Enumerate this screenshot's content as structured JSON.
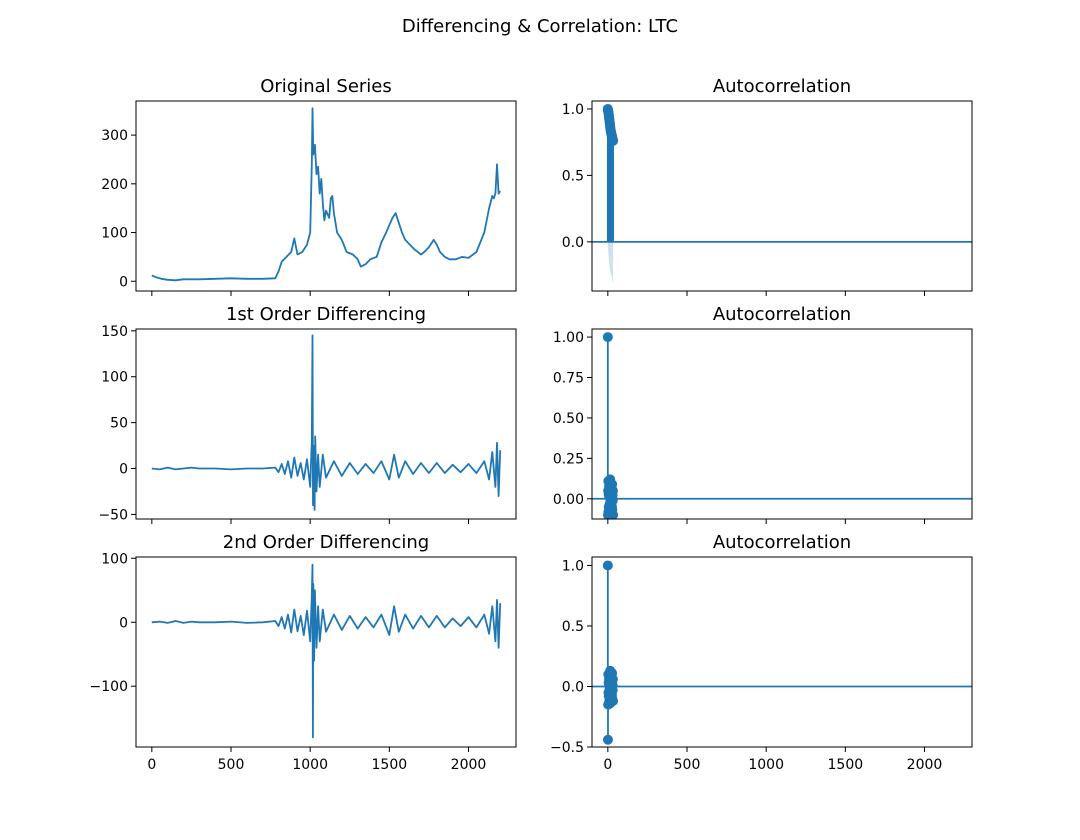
{
  "figure": {
    "title": "Differencing & Correlation: LTC"
  },
  "colors": {
    "series": "#1f77b4",
    "band": "#1f77b4",
    "axis": "#000000"
  },
  "chart_data": [
    {
      "type": "line",
      "title": "Original Series",
      "xlim": [
        -100,
        2300
      ],
      "ylim": [
        -20,
        370
      ],
      "yticks": [
        0,
        100,
        200,
        300
      ],
      "ytick_labels": [
        "0",
        "100",
        "200",
        "300"
      ],
      "xticks": [
        0,
        500,
        1000,
        1500,
        2000
      ],
      "xtick_labels_visible": false,
      "points": [
        [
          0,
          12
        ],
        [
          30,
          8
        ],
        [
          60,
          5
        ],
        [
          100,
          3
        ],
        [
          150,
          2
        ],
        [
          200,
          4
        ],
        [
          300,
          4
        ],
        [
          400,
          5
        ],
        [
          500,
          6
        ],
        [
          600,
          5
        ],
        [
          700,
          5
        ],
        [
          780,
          6
        ],
        [
          800,
          20
        ],
        [
          820,
          40
        ],
        [
          850,
          50
        ],
        [
          880,
          60
        ],
        [
          900,
          88
        ],
        [
          920,
          55
        ],
        [
          950,
          60
        ],
        [
          980,
          75
        ],
        [
          1000,
          100
        ],
        [
          1010,
          240
        ],
        [
          1015,
          355
        ],
        [
          1020,
          260
        ],
        [
          1030,
          280
        ],
        [
          1040,
          220
        ],
        [
          1050,
          235
        ],
        [
          1060,
          180
        ],
        [
          1070,
          210
        ],
        [
          1080,
          160
        ],
        [
          1090,
          125
        ],
        [
          1100,
          145
        ],
        [
          1120,
          130
        ],
        [
          1130,
          170
        ],
        [
          1140,
          175
        ],
        [
          1150,
          140
        ],
        [
          1170,
          100
        ],
        [
          1200,
          85
        ],
        [
          1230,
          60
        ],
        [
          1270,
          55
        ],
        [
          1300,
          45
        ],
        [
          1320,
          30
        ],
        [
          1350,
          35
        ],
        [
          1380,
          45
        ],
        [
          1420,
          50
        ],
        [
          1450,
          80
        ],
        [
          1480,
          100
        ],
        [
          1500,
          115
        ],
        [
          1520,
          130
        ],
        [
          1540,
          140
        ],
        [
          1560,
          120
        ],
        [
          1580,
          100
        ],
        [
          1600,
          85
        ],
        [
          1630,
          75
        ],
        [
          1660,
          65
        ],
        [
          1700,
          55
        ],
        [
          1720,
          60
        ],
        [
          1750,
          70
        ],
        [
          1780,
          85
        ],
        [
          1800,
          75
        ],
        [
          1820,
          60
        ],
        [
          1850,
          50
        ],
        [
          1880,
          45
        ],
        [
          1920,
          45
        ],
        [
          1960,
          50
        ],
        [
          2000,
          48
        ],
        [
          2050,
          60
        ],
        [
          2100,
          100
        ],
        [
          2130,
          150
        ],
        [
          2150,
          175
        ],
        [
          2160,
          170
        ],
        [
          2170,
          180
        ],
        [
          2180,
          240
        ],
        [
          2190,
          180
        ],
        [
          2200,
          185
        ]
      ]
    },
    {
      "type": "stem",
      "title": "Autocorrelation",
      "xlim": [
        -100,
        2300
      ],
      "ylim": [
        -0.37,
        1.06
      ],
      "yticks": [
        0.0,
        0.5,
        1.0
      ],
      "ytick_labels": [
        "0.0",
        "0.5",
        "1.0"
      ],
      "xticks": [
        0,
        500,
        1000,
        1500,
        2000
      ],
      "xtick_labels_visible": false,
      "lags": [
        0,
        1,
        2,
        3,
        4,
        5,
        6,
        7,
        8,
        9,
        10,
        11,
        12,
        13,
        14,
        15,
        16,
        17,
        18,
        19,
        20,
        21,
        22,
        23,
        24,
        25,
        26,
        27,
        28,
        29,
        30,
        31,
        32,
        33
      ],
      "values": [
        1.0,
        0.99,
        0.985,
        0.98,
        0.975,
        0.965,
        0.955,
        0.945,
        0.935,
        0.925,
        0.915,
        0.905,
        0.895,
        0.885,
        0.875,
        0.865,
        0.855,
        0.845,
        0.835,
        0.83,
        0.825,
        0.82,
        0.815,
        0.81,
        0.805,
        0.8,
        0.795,
        0.79,
        0.785,
        0.78,
        0.775,
        0.77,
        0.765,
        0.76
      ],
      "confint_lower": [
        0,
        -0.04,
        -0.07,
        -0.09,
        -0.11,
        -0.12,
        -0.14,
        -0.15,
        -0.16,
        -0.17,
        -0.18,
        -0.19,
        -0.2,
        -0.21,
        -0.215,
        -0.22,
        -0.225,
        -0.23,
        -0.235,
        -0.24,
        -0.245,
        -0.25,
        -0.255,
        -0.26,
        -0.265,
        -0.27,
        -0.275,
        -0.28,
        -0.285,
        -0.29,
        -0.295,
        -0.3,
        -0.305,
        -0.31
      ]
    },
    {
      "type": "line",
      "title": "1st Order Differencing",
      "xlim": [
        -100,
        2300
      ],
      "ylim": [
        -55,
        152
      ],
      "yticks": [
        -50,
        0,
        50,
        100,
        150
      ],
      "ytick_labels": [
        "−50",
        "0",
        "50",
        "100",
        "150"
      ],
      "xticks": [
        0,
        500,
        1000,
        1500,
        2000
      ],
      "xtick_labels_visible": false,
      "points": [
        [
          0,
          0
        ],
        [
          50,
          -1
        ],
        [
          100,
          1
        ],
        [
          150,
          -1
        ],
        [
          200,
          0
        ],
        [
          250,
          1
        ],
        [
          300,
          0
        ],
        [
          400,
          0
        ],
        [
          500,
          -1
        ],
        [
          600,
          0
        ],
        [
          700,
          0
        ],
        [
          780,
          1
        ],
        [
          800,
          -4
        ],
        [
          820,
          5
        ],
        [
          840,
          -6
        ],
        [
          860,
          8
        ],
        [
          880,
          -10
        ],
        [
          900,
          12
        ],
        [
          920,
          -8
        ],
        [
          940,
          6
        ],
        [
          960,
          -12
        ],
        [
          980,
          10
        ],
        [
          1000,
          -20
        ],
        [
          1010,
          30
        ],
        [
          1015,
          145
        ],
        [
          1018,
          -40
        ],
        [
          1022,
          25
        ],
        [
          1028,
          -45
        ],
        [
          1032,
          35
        ],
        [
          1040,
          -25
        ],
        [
          1050,
          15
        ],
        [
          1060,
          -20
        ],
        [
          1080,
          15
        ],
        [
          1100,
          -10
        ],
        [
          1150,
          8
        ],
        [
          1200,
          -8
        ],
        [
          1250,
          6
        ],
        [
          1300,
          -6
        ],
        [
          1350,
          5
        ],
        [
          1400,
          -5
        ],
        [
          1450,
          8
        ],
        [
          1500,
          -12
        ],
        [
          1530,
          15
        ],
        [
          1560,
          -10
        ],
        [
          1600,
          8
        ],
        [
          1650,
          -6
        ],
        [
          1700,
          6
        ],
        [
          1750,
          -5
        ],
        [
          1800,
          6
        ],
        [
          1850,
          -5
        ],
        [
          1900,
          4
        ],
        [
          1950,
          -4
        ],
        [
          2000,
          5
        ],
        [
          2050,
          -5
        ],
        [
          2100,
          8
        ],
        [
          2130,
          -12
        ],
        [
          2150,
          18
        ],
        [
          2170,
          -20
        ],
        [
          2180,
          28
        ],
        [
          2190,
          -30
        ],
        [
          2200,
          20
        ]
      ]
    },
    {
      "type": "stem",
      "title": "Autocorrelation",
      "xlim": [
        -100,
        2300
      ],
      "ylim": [
        -0.125,
        1.05
      ],
      "yticks": [
        0.0,
        0.25,
        0.5,
        0.75,
        1.0
      ],
      "ytick_labels": [
        "0.00",
        "0.25",
        "0.50",
        "0.75",
        "1.00"
      ],
      "xticks": [
        0,
        500,
        1000,
        1500,
        2000
      ],
      "xtick_labels_visible": false,
      "lags": [
        0,
        1,
        2,
        3,
        4,
        5,
        6,
        7,
        8,
        9,
        10,
        11,
        12,
        13,
        14,
        15,
        16,
        17,
        18,
        19,
        20,
        21,
        22,
        23,
        24,
        25,
        26,
        27,
        28,
        29,
        30,
        31,
        32,
        33
      ],
      "values": [
        1.0,
        -0.1,
        0.05,
        0.11,
        -0.08,
        0.03,
        -0.05,
        0.02,
        0.08,
        -0.09,
        0.04,
        0.01,
        -0.03,
        0.06,
        -0.1,
        0.12,
        -0.02,
        0.03,
        -0.06,
        0.05,
        0.02,
        -0.04,
        0.07,
        -0.03,
        0.01,
        0.04,
        -0.05,
        0.09,
        -0.07,
        0.03,
        0.02,
        -0.01,
        0.05,
        -0.1
      ],
      "confint_lower": []
    },
    {
      "type": "line",
      "title": "2nd Order Differencing",
      "xlim": [
        -100,
        2300
      ],
      "ylim": [
        -195,
        102
      ],
      "yticks": [
        -100,
        0,
        100
      ],
      "ytick_labels": [
        "−100",
        "0",
        "100"
      ],
      "xticks": [
        0,
        500,
        1000,
        1500,
        2000
      ],
      "xtick_labels": [
        "0",
        "500",
        "1000",
        "1500",
        "2000"
      ],
      "xtick_labels_visible": true,
      "points": [
        [
          0,
          0
        ],
        [
          50,
          1
        ],
        [
          100,
          -1
        ],
        [
          150,
          2
        ],
        [
          200,
          -1
        ],
        [
          250,
          1
        ],
        [
          300,
          0
        ],
        [
          400,
          0
        ],
        [
          500,
          1
        ],
        [
          600,
          -1
        ],
        [
          700,
          0
        ],
        [
          780,
          2
        ],
        [
          800,
          -6
        ],
        [
          820,
          8
        ],
        [
          840,
          -10
        ],
        [
          860,
          12
        ],
        [
          880,
          -16
        ],
        [
          900,
          20
        ],
        [
          920,
          -14
        ],
        [
          940,
          10
        ],
        [
          960,
          -20
        ],
        [
          980,
          18
        ],
        [
          1000,
          -30
        ],
        [
          1010,
          40
        ],
        [
          1015,
          90
        ],
        [
          1017,
          -180
        ],
        [
          1020,
          60
        ],
        [
          1025,
          -60
        ],
        [
          1030,
          50
        ],
        [
          1040,
          -40
        ],
        [
          1050,
          25
        ],
        [
          1060,
          -30
        ],
        [
          1080,
          20
        ],
        [
          1100,
          -15
        ],
        [
          1150,
          12
        ],
        [
          1200,
          -12
        ],
        [
          1250,
          10
        ],
        [
          1300,
          -10
        ],
        [
          1350,
          8
        ],
        [
          1400,
          -8
        ],
        [
          1450,
          12
        ],
        [
          1500,
          -20
        ],
        [
          1530,
          25
        ],
        [
          1560,
          -15
        ],
        [
          1600,
          12
        ],
        [
          1650,
          -10
        ],
        [
          1700,
          10
        ],
        [
          1750,
          -8
        ],
        [
          1800,
          10
        ],
        [
          1850,
          -8
        ],
        [
          1900,
          6
        ],
        [
          1950,
          -6
        ],
        [
          2000,
          8
        ],
        [
          2050,
          -8
        ],
        [
          2100,
          12
        ],
        [
          2130,
          -18
        ],
        [
          2150,
          25
        ],
        [
          2170,
          -30
        ],
        [
          2180,
          35
        ],
        [
          2190,
          -40
        ],
        [
          2200,
          30
        ]
      ]
    },
    {
      "type": "stem",
      "title": "Autocorrelation",
      "xlim": [
        -100,
        2300
      ],
      "ylim": [
        -0.5,
        1.07
      ],
      "yticks": [
        -0.5,
        0.0,
        0.5,
        1.0
      ],
      "ytick_labels": [
        "−0.5",
        "0.0",
        "0.5",
        "1.0"
      ],
      "xticks": [
        0,
        500,
        1000,
        1500,
        2000
      ],
      "xtick_labels": [
        "0",
        "500",
        "1000",
        "1500",
        "2000"
      ],
      "xtick_labels_visible": true,
      "lags": [
        0,
        1,
        2,
        3,
        4,
        5,
        6,
        7,
        8,
        9,
        10,
        11,
        12,
        13,
        14,
        15,
        16,
        17,
        18,
        19,
        20,
        21,
        22,
        23,
        24,
        25,
        26,
        27,
        28,
        29,
        30,
        31,
        32,
        33
      ],
      "values": [
        1.0,
        -0.44,
        -0.15,
        0.1,
        -0.05,
        0.03,
        -0.08,
        0.04,
        0.06,
        -0.12,
        0.05,
        -0.02,
        0.02,
        0.09,
        -0.14,
        0.13,
        -0.06,
        0.05,
        -0.09,
        0.07,
        0.01,
        -0.05,
        0.08,
        -0.06,
        0.02,
        0.04,
        -0.07,
        0.11,
        -0.1,
        0.05,
        0.01,
        -0.03,
        0.06,
        -0.12
      ],
      "confint_lower": []
    }
  ]
}
